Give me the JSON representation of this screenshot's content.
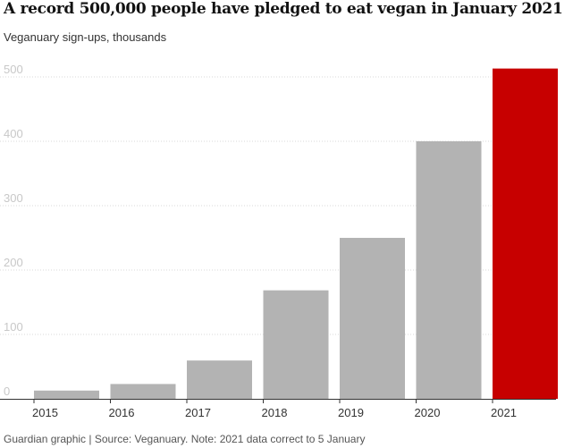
{
  "header": {
    "title": "A record 500,000 people have pledged to eat vegan in January 2021",
    "subtitle": "Veganuary sign-ups, thousands"
  },
  "footer": {
    "source": "Guardian graphic | Source: Veganuary. Note: 2021 data correct to 5 January"
  },
  "colors": {
    "bar": "#b3b3b3",
    "highlight": "#c70000",
    "grid": "#d9d9d9",
    "baseline": "#333333"
  },
  "chart_data": {
    "type": "bar",
    "title": "A record 500,000 people have pledged to eat vegan in January 2021",
    "subtitle": "Veganuary sign-ups, thousands",
    "xlabel": "",
    "ylabel": "",
    "categories": [
      "2015",
      "2016",
      "2017",
      "2018",
      "2019",
      "2020",
      "2021"
    ],
    "values": [
      12.8,
      23.0,
      59.5,
      168.5,
      250,
      400,
      513
    ],
    "highlight_index": 6,
    "ylim": [
      0,
      520
    ],
    "yticks": [
      0,
      100,
      200,
      300,
      400,
      500
    ],
    "grid": true,
    "legend": "none"
  }
}
